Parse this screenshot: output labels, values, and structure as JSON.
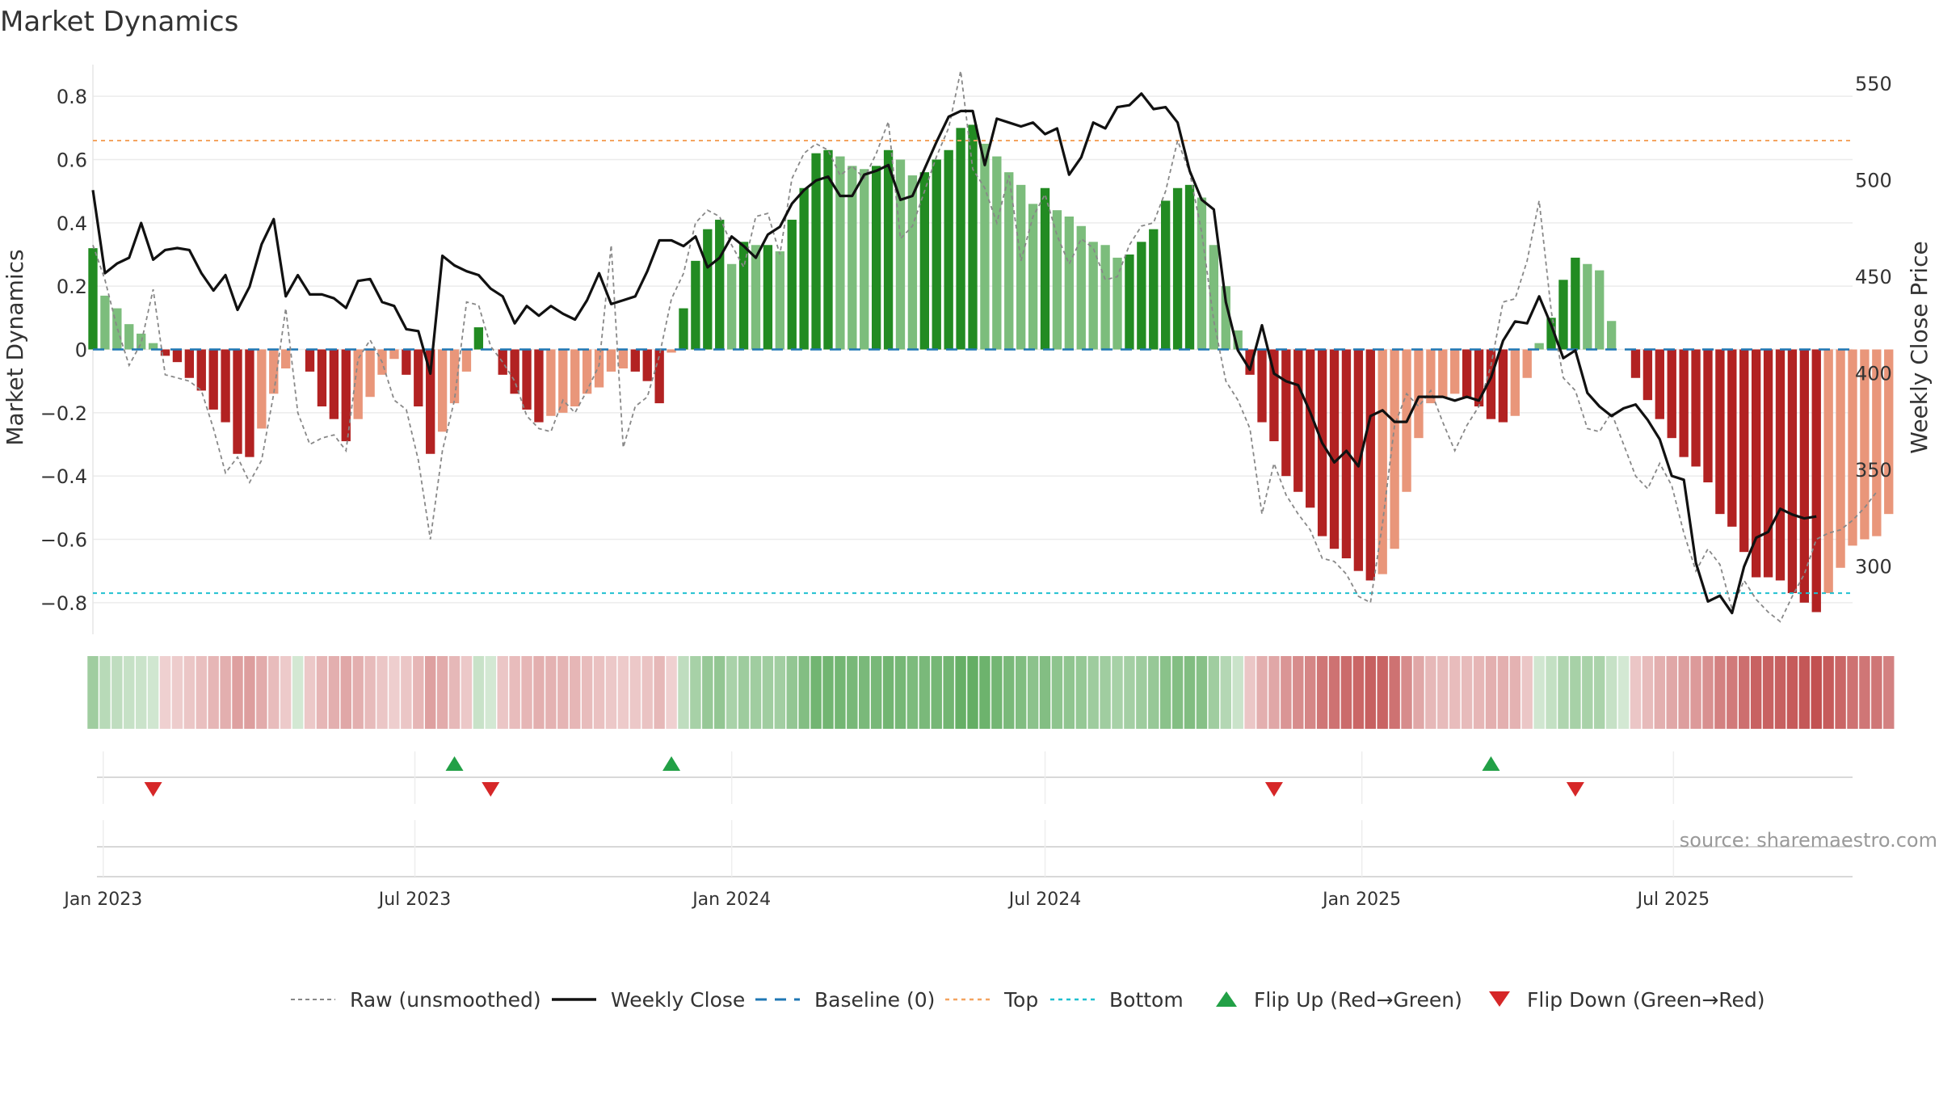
{
  "chart_data": {
    "type": "bar",
    "title": "Market Dynamics",
    "ylabel_left": "Market Dynamics",
    "ylabel_right": "Weekly Close Price",
    "source": "source: sharemaestro.com",
    "ylim_left": [
      -0.9,
      0.9
    ],
    "ylim_right": [
      265,
      560
    ],
    "yticks_left": [
      0.8,
      0.6,
      0.4,
      0.2,
      0,
      -0.2,
      -0.4,
      -0.6,
      -0.8
    ],
    "yticks_left_labels": [
      "0.8",
      "0.6",
      "0.4",
      "0.2",
      "0",
      "−0.2",
      "−0.4",
      "−0.6",
      "−0.8"
    ],
    "yticks_right": [
      550,
      500,
      450,
      400,
      350,
      300
    ],
    "x_start": "2022-12-26",
    "x_end": "2025-10-13",
    "xticks": [
      {
        "date": "2023-01-01",
        "label": "Jan 2023"
      },
      {
        "date": "2023-07-01",
        "label": "Jul 2023"
      },
      {
        "date": "2024-01-01",
        "label": "Jan 2024"
      },
      {
        "date": "2024-07-01",
        "label": "Jul 2024"
      },
      {
        "date": "2025-01-01",
        "label": "Jan 2025"
      },
      {
        "date": "2025-07-01",
        "label": "Jul 2025"
      }
    ],
    "first_week": "2022-12-26",
    "week_step_days": 7,
    "bars": [
      0.32,
      0.17,
      0.13,
      0.08,
      0.05,
      0.02,
      -0.02,
      -0.04,
      -0.09,
      -0.13,
      -0.19,
      -0.23,
      -0.33,
      -0.34,
      -0.25,
      -0.14,
      -0.06,
      0,
      -0.07,
      -0.18,
      -0.22,
      -0.29,
      -0.22,
      -0.15,
      -0.08,
      -0.03,
      -0.08,
      -0.18,
      -0.33,
      -0.26,
      -0.17,
      -0.07,
      0.07,
      0,
      -0.08,
      -0.14,
      -0.19,
      -0.23,
      -0.21,
      -0.2,
      -0.18,
      -0.14,
      -0.12,
      -0.07,
      -0.06,
      -0.07,
      -0.1,
      -0.17,
      -0.01,
      0.13,
      0.28,
      0.38,
      0.41,
      0.27,
      0.34,
      0.33,
      0.33,
      0.31,
      0.41,
      0.51,
      0.62,
      0.63,
      0.61,
      0.58,
      0.57,
      0.58,
      0.63,
      0.6,
      0.55,
      0.56,
      0.6,
      0.63,
      0.7,
      0.71,
      0.65,
      0.61,
      0.56,
      0.52,
      0.46,
      0.51,
      0.44,
      0.42,
      0.39,
      0.34,
      0.33,
      0.29,
      0.3,
      0.34,
      0.38,
      0.47,
      0.51,
      0.52,
      0.48,
      0.33,
      0.2,
      0.06,
      -0.08,
      -0.23,
      -0.29,
      -0.4,
      -0.45,
      -0.5,
      -0.59,
      -0.63,
      -0.66,
      -0.7,
      -0.73,
      -0.71,
      -0.63,
      -0.45,
      -0.28,
      -0.17,
      -0.15,
      -0.14,
      -0.15,
      -0.18,
      -0.22,
      -0.23,
      -0.21,
      -0.09,
      0.02,
      0.1,
      0.22,
      0.29,
      0.27,
      0.25,
      0.09,
      0,
      -0.09,
      -0.16,
      -0.22,
      -0.28,
      -0.34,
      -0.37,
      -0.42,
      -0.52,
      -0.56,
      -0.64,
      -0.72,
      -0.72,
      -0.73,
      -0.77,
      -0.8,
      -0.83,
      -0.77,
      -0.69,
      -0.62,
      -0.6,
      -0.59,
      -0.52
    ],
    "raw": [
      0.33,
      0.22,
      0.07,
      -0.05,
      0.02,
      0.19,
      -0.08,
      -0.09,
      -0.1,
      -0.13,
      -0.25,
      -0.39,
      -0.34,
      -0.42,
      -0.35,
      -0.14,
      0.13,
      -0.2,
      -0.3,
      -0.28,
      -0.27,
      -0.32,
      -0.03,
      0.03,
      -0.04,
      -0.16,
      -0.19,
      -0.35,
      -0.6,
      -0.32,
      -0.16,
      0.15,
      0.14,
      0.01,
      -0.04,
      -0.1,
      -0.21,
      -0.25,
      -0.26,
      -0.16,
      -0.2,
      -0.13,
      -0.05,
      0.33,
      -0.31,
      -0.18,
      -0.15,
      -0.02,
      0.16,
      0.24,
      0.4,
      0.44,
      0.42,
      0.33,
      0.26,
      0.42,
      0.43,
      0.3,
      0.54,
      0.62,
      0.65,
      0.63,
      0.55,
      0.58,
      0.54,
      0.62,
      0.72,
      0.35,
      0.39,
      0.5,
      0.61,
      0.7,
      0.88,
      0.57,
      0.51,
      0.4,
      0.55,
      0.28,
      0.42,
      0.49,
      0.36,
      0.27,
      0.35,
      0.32,
      0.22,
      0.23,
      0.33,
      0.39,
      0.4,
      0.5,
      0.66,
      0.56,
      0.37,
      0.09,
      -0.1,
      -0.16,
      -0.25,
      -0.52,
      -0.36,
      -0.46,
      -0.52,
      -0.57,
      -0.66,
      -0.67,
      -0.71,
      -0.78,
      -0.8,
      -0.55,
      -0.24,
      -0.14,
      -0.18,
      -0.13,
      -0.23,
      -0.32,
      -0.24,
      -0.18,
      -0.05,
      0.15,
      0.16,
      0.28,
      0.47,
      0.12,
      -0.09,
      -0.13,
      -0.25,
      -0.26,
      -0.2,
      -0.3,
      -0.4,
      -0.44,
      -0.36,
      -0.43,
      -0.58,
      -0.7,
      -0.63,
      -0.68,
      -0.82,
      -0.73,
      -0.79,
      -0.83,
      -0.86,
      -0.78,
      -0.71,
      -0.6,
      -0.58,
      -0.57,
      -0.54,
      -0.5,
      -0.45
    ],
    "close": [
      495,
      452,
      457,
      460,
      478,
      459,
      464,
      465,
      464,
      452,
      443,
      451,
      433,
      445,
      467,
      480,
      440,
      451,
      441,
      441,
      439,
      434,
      448,
      449,
      437,
      435,
      423,
      422,
      400,
      461,
      456,
      453,
      451,
      444,
      440,
      426,
      435,
      430,
      435,
      431,
      428,
      438,
      452,
      436,
      438,
      440,
      453,
      469,
      469,
      466,
      471,
      455,
      460,
      471,
      466,
      460,
      472,
      476,
      488,
      495,
      500,
      502,
      492,
      492,
      503,
      505,
      508,
      490,
      492,
      506,
      520,
      533,
      536,
      536,
      508,
      532,
      530,
      528,
      530,
      524,
      527,
      503,
      512,
      530,
      527,
      538,
      539,
      545,
      537,
      538,
      530,
      505,
      490,
      485,
      437,
      412,
      402,
      425,
      400,
      396,
      394,
      380,
      364,
      354,
      360,
      352,
      378,
      381,
      375,
      375,
      388,
      388,
      388,
      386,
      388,
      386,
      398,
      417,
      427,
      426,
      440,
      425,
      408,
      412,
      390,
      383,
      378,
      382,
      384,
      376,
      366,
      347,
      345,
      302,
      282,
      285,
      276,
      300,
      315,
      318,
      330,
      327,
      325,
      326
    ],
    "flip_up": [
      "2023-07-24",
      "2023-11-27",
      "2025-03-17"
    ],
    "flip_down": [
      "2023-01-30",
      "2023-08-14",
      "2024-11-11",
      "2025-05-05"
    ],
    "colors": {
      "strong_green": "#228b22",
      "light_green": "#7cbd7c",
      "strong_red": "#b22222",
      "light_red": "#e9967a",
      "close_line": "#111111",
      "raw_line": "#888888",
      "baseline": "#1f77b4",
      "top": "#f4a460",
      "bottom": "#20c0d0",
      "flip_up": "#22a046",
      "flip_down": "#d62728"
    },
    "thresholds": {
      "top": 0.66,
      "bottom": -0.77,
      "baseline": 0
    },
    "legend": {
      "position": "bottom-center",
      "items": [
        {
          "key": "raw",
          "label": "Raw (unsmoothed)"
        },
        {
          "key": "close",
          "label": "Weekly Close"
        },
        {
          "key": "baseline",
          "label": "Baseline (0)"
        },
        {
          "key": "top",
          "label": "Top"
        },
        {
          "key": "bottom",
          "label": "Bottom"
        },
        {
          "key": "up",
          "label": "Flip Up (Red→Green)"
        },
        {
          "key": "down",
          "label": "Flip Down (Green→Red)"
        }
      ]
    }
  }
}
